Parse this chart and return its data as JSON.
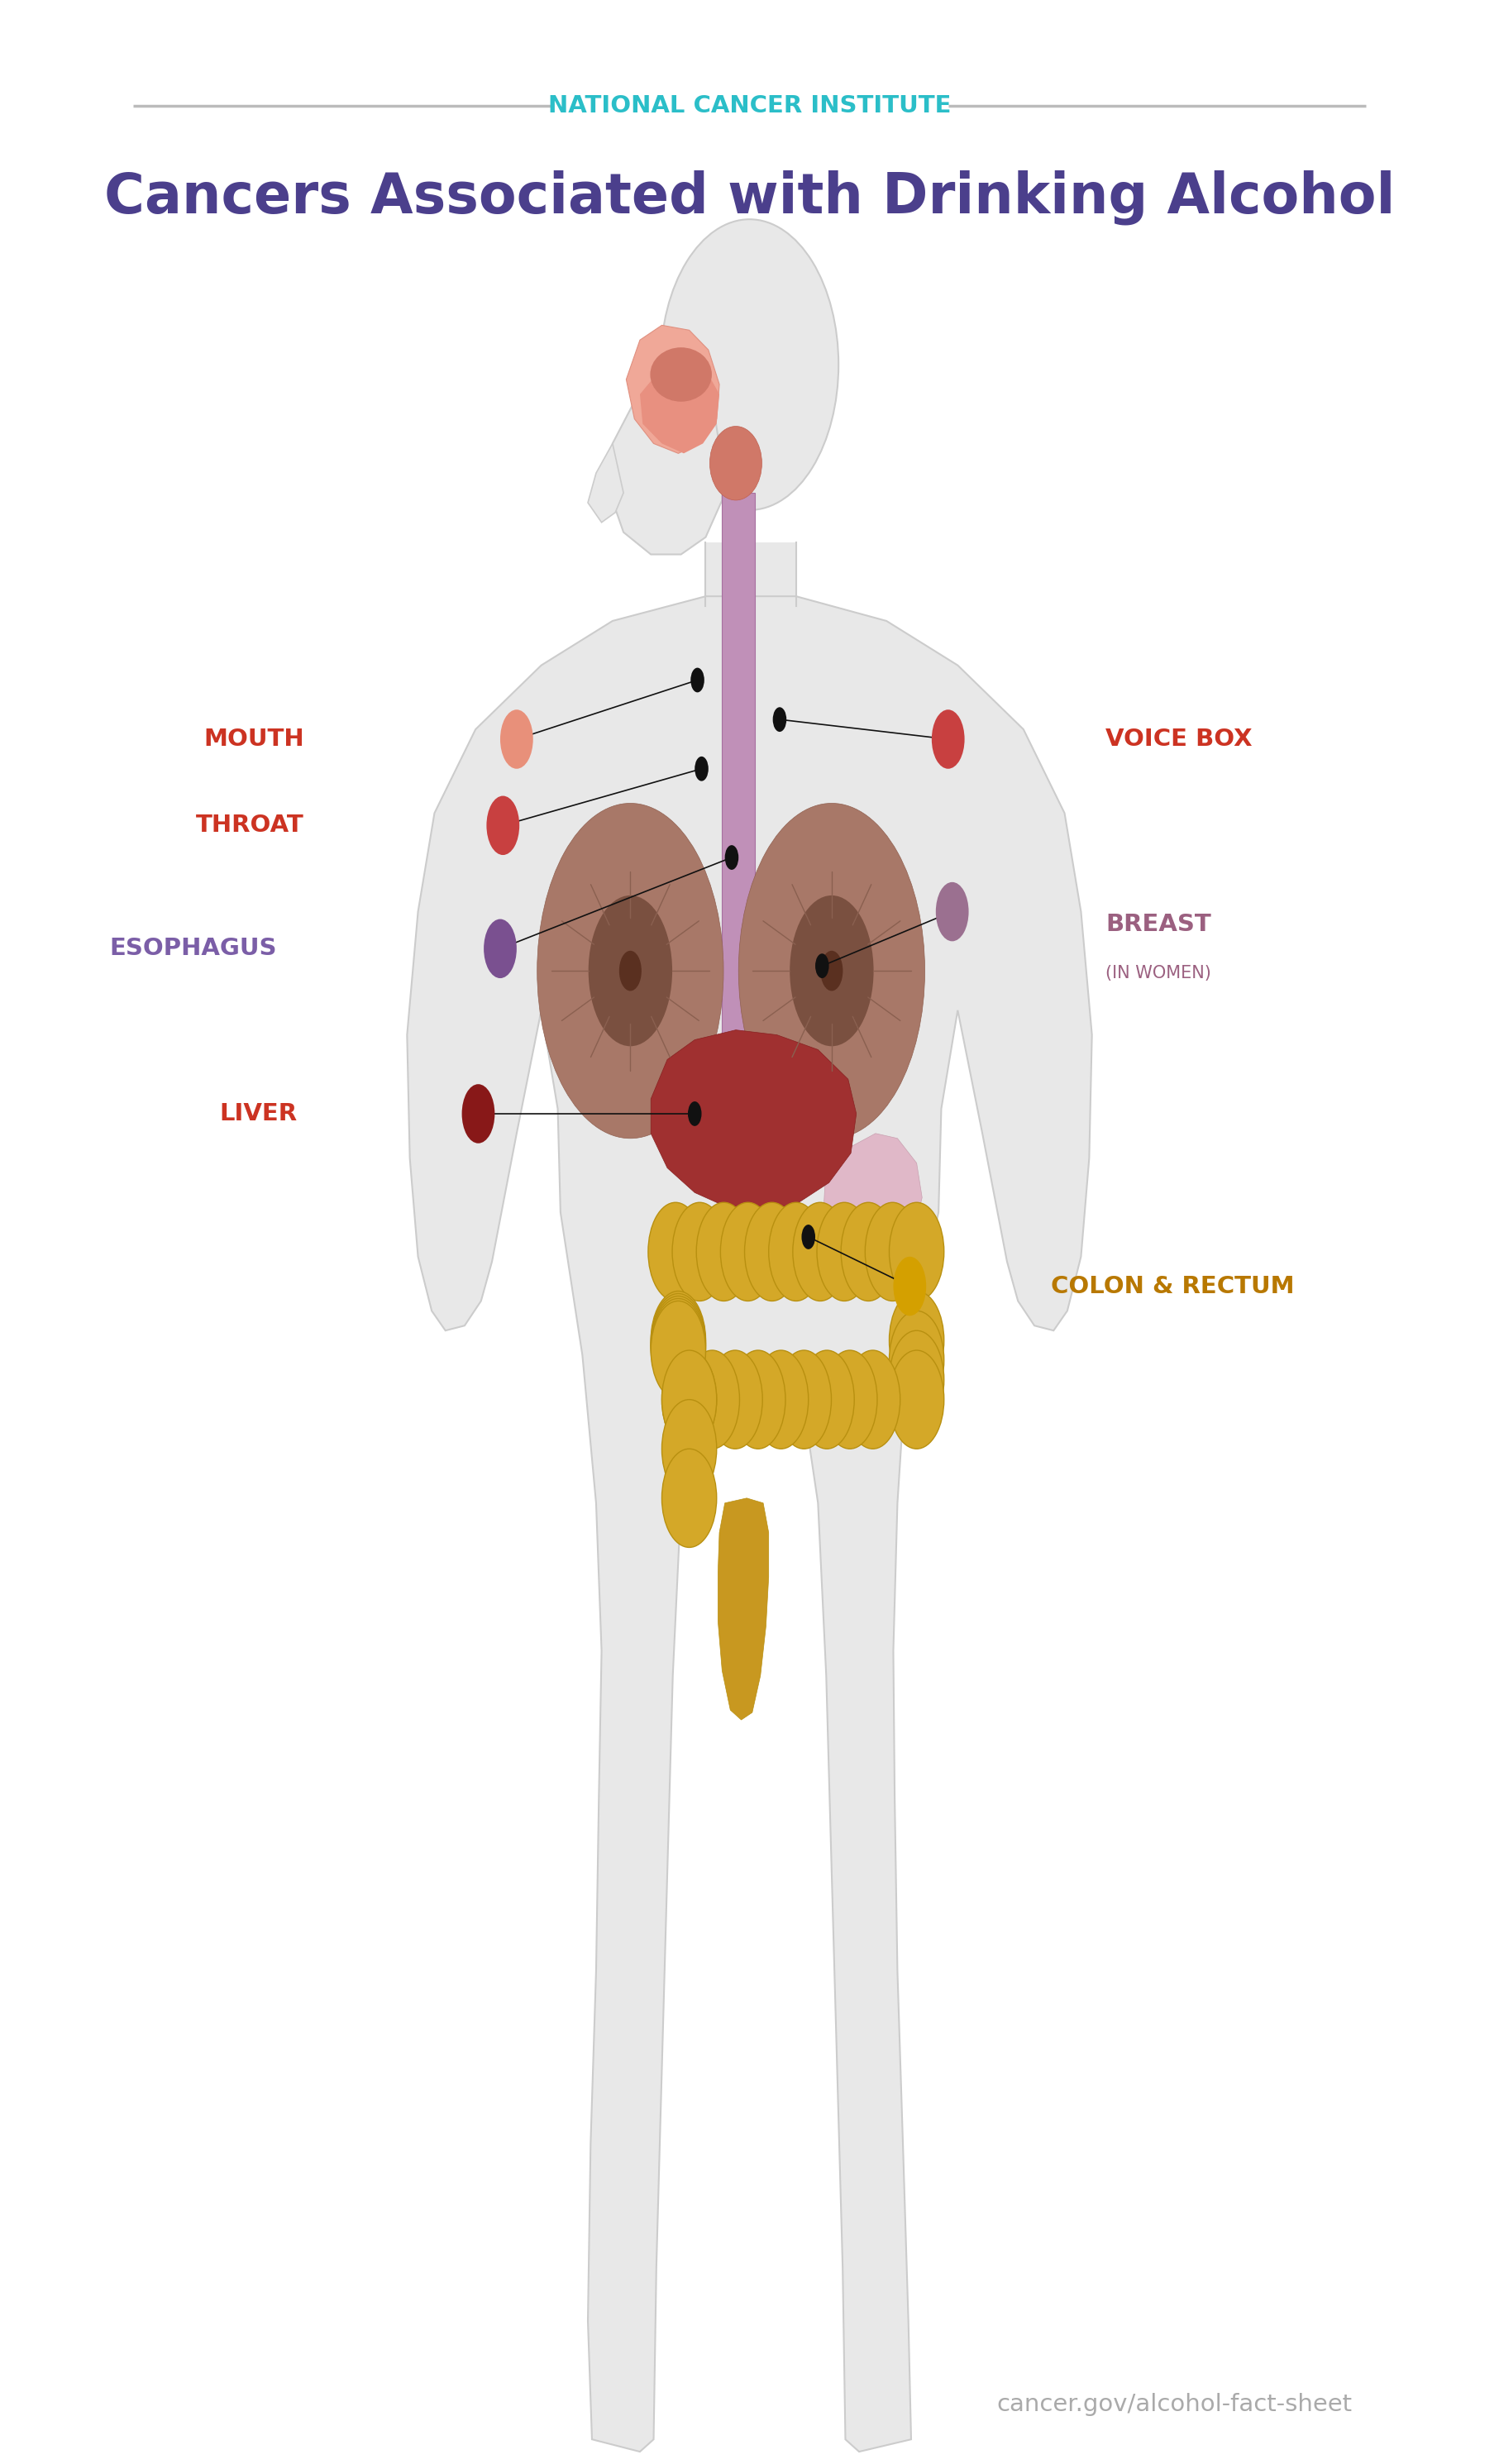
{
  "title_institution": "NATIONAL CANCER INSTITUTE",
  "title_institution_color": "#2BBEC8",
  "title_main": "Cancers Associated with Drinking Alcohol",
  "title_main_color": "#4B3F8C",
  "background_color": "#FFFFFF",
  "footer_text": "cancer.gov/alcohol-fact-sheet",
  "footer_color": "#AAAAAA",
  "labels": [
    {
      "name": "MOUTH",
      "color": "#CC3322",
      "dot_color": "#E8907A",
      "xl": 0.175,
      "yl": 0.7,
      "xd": 0.33,
      "yd": 0.7,
      "xo": 0.462,
      "yo": 0.724,
      "side": "left"
    },
    {
      "name": "THROAT",
      "color": "#CC3322",
      "dot_color": "#C84040",
      "xl": 0.175,
      "yl": 0.665,
      "xd": 0.32,
      "yd": 0.665,
      "xo": 0.465,
      "yo": 0.688,
      "side": "left"
    },
    {
      "name": "ESOPHAGUS",
      "color": "#7B5EA7",
      "dot_color": "#7A5090",
      "xl": 0.155,
      "yl": 0.615,
      "xd": 0.318,
      "yd": 0.615,
      "xo": 0.487,
      "yo": 0.652,
      "side": "left"
    },
    {
      "name": "LIVER",
      "color": "#CC3322",
      "dot_color": "#881818",
      "xl": 0.17,
      "yl": 0.548,
      "xd": 0.302,
      "yd": 0.548,
      "xo": 0.46,
      "yo": 0.548,
      "side": "left"
    },
    {
      "name": "VOICE BOX",
      "color": "#CC3322",
      "dot_color": "#C84040",
      "xl": 0.76,
      "yl": 0.7,
      "xd": 0.645,
      "yd": 0.7,
      "xo": 0.522,
      "yo": 0.708,
      "side": "right"
    },
    {
      "name": "BREAST",
      "color": "#9B6080",
      "dot_color": "#9B7090",
      "xl": 0.76,
      "yl": 0.625,
      "xd": 0.648,
      "yd": 0.63,
      "xo": 0.553,
      "yo": 0.608,
      "side": "right",
      "sub": "(IN WOMEN)"
    },
    {
      "name": "COLON & RECTUM",
      "color": "#B87800",
      "dot_color": "#D4A000",
      "xl": 0.72,
      "yl": 0.478,
      "xd": 0.617,
      "yd": 0.478,
      "xo": 0.543,
      "yo": 0.498,
      "side": "right"
    }
  ]
}
